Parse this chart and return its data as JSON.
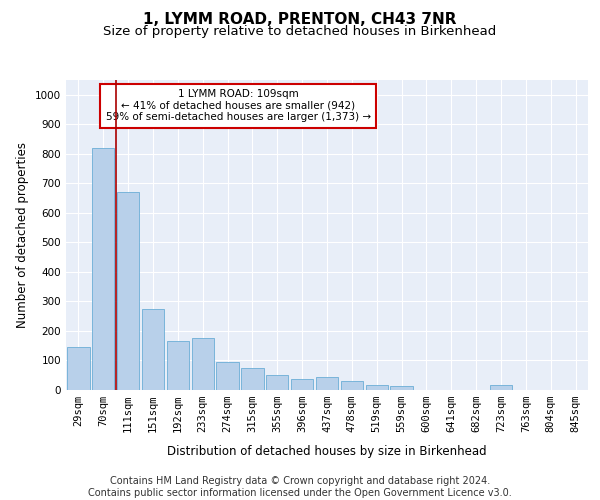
{
  "title": "1, LYMM ROAD, PRENTON, CH43 7NR",
  "subtitle": "Size of property relative to detached houses in Birkenhead",
  "xlabel": "Distribution of detached houses by size in Birkenhead",
  "ylabel": "Number of detached properties",
  "bar_color": "#b8d0ea",
  "bar_edge_color": "#6baed6",
  "background_color": "#e8eef8",
  "grid_color": "#ffffff",
  "vline_color": "#aa0000",
  "vline_x": 1.5,
  "annotation_text": "1 LYMM ROAD: 109sqm\n← 41% of detached houses are smaller (942)\n59% of semi-detached houses are larger (1,373) →",
  "annotation_box_color": "#ffffff",
  "annotation_box_edge": "#cc0000",
  "categories": [
    "29sqm",
    "70sqm",
    "111sqm",
    "151sqm",
    "192sqm",
    "233sqm",
    "274sqm",
    "315sqm",
    "355sqm",
    "396sqm",
    "437sqm",
    "478sqm",
    "519sqm",
    "559sqm",
    "600sqm",
    "641sqm",
    "682sqm",
    "723sqm",
    "763sqm",
    "804sqm",
    "845sqm"
  ],
  "values": [
    145,
    820,
    670,
    275,
    165,
    175,
    95,
    75,
    50,
    38,
    45,
    30,
    18,
    15,
    0,
    0,
    0,
    18,
    0,
    0,
    0
  ],
  "ylim": [
    0,
    1050
  ],
  "yticks": [
    0,
    100,
    200,
    300,
    400,
    500,
    600,
    700,
    800,
    900,
    1000
  ],
  "footer": "Contains HM Land Registry data © Crown copyright and database right 2024.\nContains public sector information licensed under the Open Government Licence v3.0.",
  "footer_fontsize": 7.0,
  "title_fontsize": 11,
  "subtitle_fontsize": 9.5,
  "xlabel_fontsize": 8.5,
  "ylabel_fontsize": 8.5,
  "tick_fontsize": 7.5
}
